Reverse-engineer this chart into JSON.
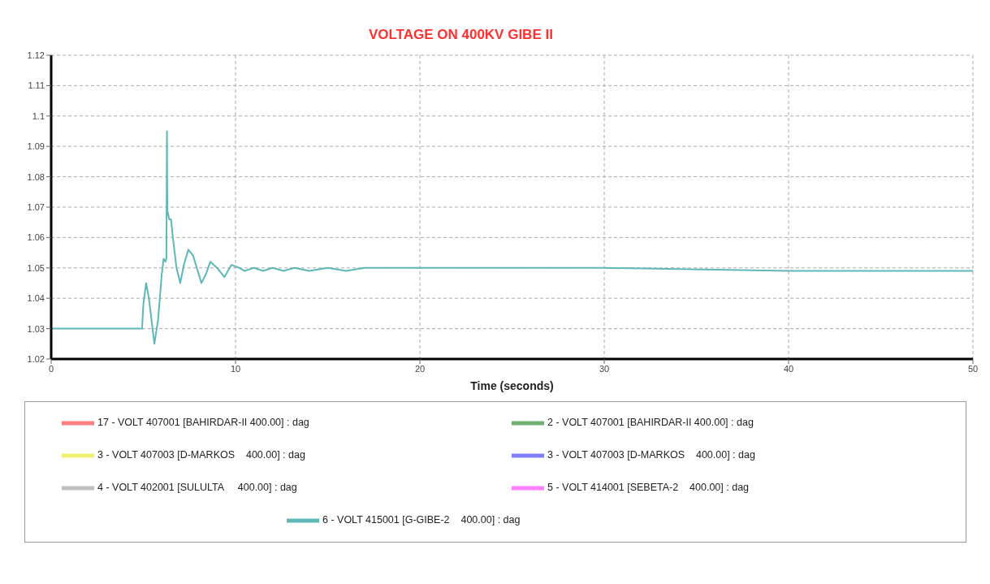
{
  "chart_data": {
    "type": "line",
    "title": "VOLTAGE ON 400KV GIBE II",
    "xlabel": "Time (seconds)",
    "xlim": [
      0,
      50
    ],
    "xticks": [
      0,
      10,
      20,
      30,
      40,
      50
    ],
    "ylim": [
      1.02,
      1.12
    ],
    "yticks": [
      1.02,
      1.03,
      1.04,
      1.05,
      1.06,
      1.07,
      1.08,
      1.09,
      1.1,
      1.11,
      1.12
    ],
    "grid": true,
    "legend": "bottom",
    "marker": "none",
    "line_style": "solid",
    "series": [
      {
        "name": "17 - VOLT 407001 [BAHIRDAR-II 400.00] : dag",
        "color": "#ff8080"
      },
      {
        "name": "2 - VOLT 407001 [BAHIRDAR-II 400.00] : dag",
        "color": "#70b070"
      },
      {
        "name": "3 - VOLT 407003 [D-MARKOS    400.00] : dag",
        "color": "#f0f070"
      },
      {
        "name": "3 - VOLT 407003 [D-MARKOS    400.00] : dag",
        "color": "#8080ff"
      },
      {
        "name": "4 - VOLT 402001 [SULULTA     400.00] : dag",
        "color": "#c0c0c0"
      },
      {
        "name": "5 - VOLT 414001 [SEBETA-2    400.00] : dag",
        "color": "#ff80ff"
      },
      {
        "name": "6 - VOLT 415001 [G-GIBE-2    400.00] : dag",
        "color": "#5fb8b8",
        "x": [
          0,
          4.93,
          5.0,
          5.15,
          5.3,
          5.6,
          5.8,
          6.0,
          6.1,
          6.2,
          6.25,
          6.28,
          6.3,
          6.4,
          6.5,
          6.6,
          6.8,
          7.0,
          7.2,
          7.44,
          7.7,
          8.15,
          8.4,
          8.63,
          9.0,
          9.4,
          9.78,
          10.2,
          10.5,
          11.0,
          11.5,
          12.0,
          12.6,
          13.2,
          14.0,
          15.0,
          16.0,
          17.0,
          18.0,
          19.0,
          20.0,
          25.0,
          30.0,
          40.0,
          50.0
        ],
        "values": [
          1.03,
          1.03,
          1.038,
          1.045,
          1.04,
          1.025,
          1.033,
          1.048,
          1.053,
          1.052,
          1.053,
          1.095,
          1.069,
          1.066,
          1.066,
          1.06,
          1.05,
          1.045,
          1.051,
          1.056,
          1.054,
          1.045,
          1.048,
          1.052,
          1.05,
          1.047,
          1.051,
          1.05,
          1.049,
          1.05,
          1.049,
          1.05,
          1.049,
          1.05,
          1.049,
          1.05,
          1.049,
          1.05,
          1.05,
          1.05,
          1.05,
          1.05,
          1.05,
          1.049,
          1.049
        ]
      }
    ]
  }
}
